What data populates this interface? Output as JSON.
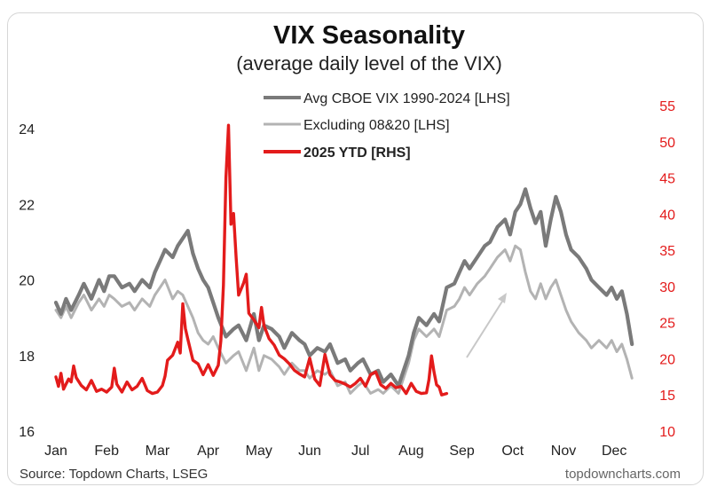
{
  "colors": {
    "avg": "#7a7a7a",
    "excl": "#b3b3b3",
    "ytd": "#e31b1b",
    "right_axis": "#e31b1b",
    "arrow": "#c8c8c8"
  },
  "chart_data": {
    "type": "line",
    "title": "VIX Seasonality",
    "subtitle": "(average daily level of the VIX)",
    "source": "Source: Topdown Charts, LSEG",
    "watermark": "topdowncharts.com",
    "x_categories": [
      "Jan",
      "Feb",
      "Mar",
      "Apr",
      "May",
      "Jun",
      "Jul",
      "Aug",
      "Sep",
      "Oct",
      "Nov",
      "Dec"
    ],
    "y_left": {
      "ticks": [
        "16",
        "18",
        "20",
        "22",
        "24"
      ],
      "range": [
        16,
        24.8
      ]
    },
    "y_right": {
      "ticks": [
        "10",
        "15",
        "20",
        "25",
        "30",
        "35",
        "40",
        "45",
        "50",
        "55"
      ],
      "range": [
        10,
        56
      ]
    },
    "grid": false,
    "legend_position": "top-center",
    "annotation": "arrow pointing up-right in early September",
    "series": [
      {
        "name": "Avg CBOE VIX 1990-2024 [LHS]",
        "axis": "left",
        "x_months": [
          0,
          0.1,
          0.2,
          0.3,
          0.45,
          0.55,
          0.7,
          0.85,
          0.95,
          1.05,
          1.15,
          1.3,
          1.45,
          1.55,
          1.7,
          1.85,
          1.95,
          2.05,
          2.15,
          2.3,
          2.4,
          2.5,
          2.6,
          2.7,
          2.8,
          2.9,
          3.0,
          3.1,
          3.2,
          3.35,
          3.5,
          3.6,
          3.75,
          3.9,
          4.0,
          4.1,
          4.25,
          4.4,
          4.5,
          4.65,
          4.8,
          4.9,
          5.0,
          5.15,
          5.3,
          5.4,
          5.55,
          5.7,
          5.8,
          5.95,
          6.05,
          6.2,
          6.35,
          6.45,
          6.6,
          6.75,
          6.85,
          6.95,
          7.05,
          7.15,
          7.3,
          7.45,
          7.55,
          7.7,
          7.85,
          7.95,
          8.05,
          8.15,
          8.3,
          8.45,
          8.55,
          8.7,
          8.85,
          8.95,
          9.05,
          9.15,
          9.25,
          9.35,
          9.45,
          9.55,
          9.65,
          9.75,
          9.85,
          9.95,
          10.05,
          10.15,
          10.3,
          10.45,
          10.55,
          10.7,
          10.85,
          10.95,
          11.05,
          11.15,
          11.25,
          11.35
        ],
        "values": [
          19.4,
          19.1,
          19.5,
          19.2,
          19.6,
          19.9,
          19.5,
          20.0,
          19.7,
          20.1,
          20.1,
          19.8,
          19.9,
          19.7,
          20.0,
          19.8,
          20.2,
          20.5,
          20.8,
          20.6,
          20.9,
          21.1,
          21.3,
          20.7,
          20.3,
          20.0,
          19.8,
          19.4,
          19.0,
          18.5,
          18.7,
          18.8,
          18.4,
          19.1,
          18.4,
          18.8,
          18.7,
          18.5,
          18.2,
          18.6,
          18.4,
          18.3,
          18.0,
          18.2,
          18.1,
          18.3,
          17.8,
          17.9,
          17.6,
          17.8,
          17.9,
          17.5,
          17.6,
          17.3,
          17.5,
          17.2,
          17.6,
          18.0,
          18.6,
          19.0,
          18.8,
          19.1,
          18.9,
          19.8,
          19.9,
          20.2,
          20.5,
          20.3,
          20.6,
          20.9,
          21.0,
          21.4,
          21.6,
          21.2,
          21.8,
          22.0,
          22.4,
          21.9,
          21.5,
          21.8,
          20.9,
          21.6,
          22.2,
          21.8,
          21.2,
          20.8,
          20.6,
          20.3,
          20.0,
          19.8,
          19.6,
          19.8,
          19.5,
          19.7,
          19.1,
          18.3
        ]
      },
      {
        "name": "Excluding 08&20 [LHS]",
        "axis": "left",
        "x_months": [
          0,
          0.1,
          0.2,
          0.3,
          0.45,
          0.55,
          0.7,
          0.85,
          0.95,
          1.05,
          1.15,
          1.3,
          1.45,
          1.55,
          1.7,
          1.85,
          1.95,
          2.05,
          2.15,
          2.3,
          2.4,
          2.5,
          2.6,
          2.7,
          2.8,
          2.9,
          3.0,
          3.1,
          3.2,
          3.35,
          3.5,
          3.6,
          3.75,
          3.9,
          4.0,
          4.1,
          4.25,
          4.4,
          4.5,
          4.65,
          4.8,
          4.9,
          5.0,
          5.15,
          5.3,
          5.4,
          5.55,
          5.7,
          5.8,
          5.95,
          6.05,
          6.2,
          6.35,
          6.45,
          6.6,
          6.75,
          6.85,
          6.95,
          7.05,
          7.15,
          7.3,
          7.45,
          7.55,
          7.7,
          7.85,
          7.95,
          8.05,
          8.15,
          8.3,
          8.45,
          8.55,
          8.7,
          8.85,
          8.95,
          9.05,
          9.15,
          9.25,
          9.35,
          9.45,
          9.55,
          9.65,
          9.75,
          9.85,
          9.95,
          10.05,
          10.15,
          10.3,
          10.45,
          10.55,
          10.7,
          10.85,
          10.95,
          11.05,
          11.15,
          11.25,
          11.35
        ],
        "values": [
          19.2,
          19.0,
          19.3,
          19.0,
          19.4,
          19.6,
          19.2,
          19.5,
          19.3,
          19.6,
          19.5,
          19.3,
          19.4,
          19.2,
          19.5,
          19.3,
          19.6,
          19.8,
          20.0,
          19.5,
          19.7,
          19.6,
          19.3,
          19.0,
          18.6,
          18.4,
          18.3,
          18.5,
          18.2,
          17.8,
          18.0,
          18.1,
          17.6,
          18.2,
          17.6,
          18.0,
          17.9,
          17.7,
          17.5,
          17.8,
          17.6,
          17.6,
          17.4,
          17.6,
          17.5,
          17.6,
          17.2,
          17.3,
          17.0,
          17.2,
          17.3,
          17.0,
          17.1,
          17.0,
          17.2,
          17.0,
          17.4,
          17.8,
          18.4,
          18.7,
          18.5,
          18.7,
          18.5,
          19.2,
          19.3,
          19.5,
          19.8,
          19.6,
          19.9,
          20.1,
          20.3,
          20.6,
          20.8,
          20.5,
          20.9,
          20.8,
          20.2,
          19.7,
          19.5,
          19.9,
          19.5,
          19.8,
          20.0,
          19.6,
          19.2,
          18.9,
          18.6,
          18.4,
          18.2,
          18.4,
          18.2,
          18.4,
          18.1,
          18.3,
          17.9,
          17.4
        ]
      },
      {
        "name": "2025 YTD [RHS]",
        "axis": "right",
        "x_months": [
          0,
          0.05,
          0.1,
          0.15,
          0.2,
          0.25,
          0.3,
          0.35,
          0.4,
          0.5,
          0.6,
          0.7,
          0.8,
          0.9,
          1.0,
          1.1,
          1.15,
          1.2,
          1.3,
          1.4,
          1.5,
          1.6,
          1.7,
          1.8,
          1.9,
          2.0,
          2.1,
          2.15,
          2.2,
          2.3,
          2.4,
          2.45,
          2.5,
          2.55,
          2.6,
          2.7,
          2.8,
          2.9,
          3.0,
          3.1,
          3.2,
          3.25,
          3.3,
          3.35,
          3.4,
          3.45,
          3.5,
          3.55,
          3.6,
          3.7,
          3.75,
          3.8,
          3.9,
          4.0,
          4.05,
          4.1,
          4.2,
          4.3,
          4.4,
          4.5,
          4.6,
          4.7,
          4.8,
          4.9,
          5.0,
          5.1,
          5.2,
          5.3,
          5.4,
          5.5,
          5.6,
          5.7,
          5.8,
          5.9,
          6.0,
          6.1,
          6.2,
          6.3,
          6.4,
          6.5,
          6.6,
          6.7,
          6.8,
          6.9,
          7.0,
          7.1,
          7.2,
          7.3,
          7.35,
          7.4,
          7.45,
          7.5,
          7.55,
          7.6,
          7.7
        ],
        "values": [
          17.5,
          16.2,
          18.0,
          15.8,
          16.5,
          17.2,
          16.8,
          19.0,
          17.4,
          16.3,
          15.7,
          17.0,
          15.5,
          15.8,
          15.4,
          16.1,
          18.7,
          16.5,
          15.4,
          16.8,
          15.7,
          16.2,
          17.3,
          15.6,
          15.2,
          15.4,
          16.3,
          17.6,
          19.8,
          20.5,
          22.3,
          20.8,
          27.6,
          24.2,
          22.7,
          19.8,
          19.3,
          17.8,
          19.2,
          17.7,
          19.1,
          22.5,
          30.2,
          45.0,
          52.3,
          38.6,
          40.1,
          34.0,
          28.8,
          30.5,
          31.7,
          26.3,
          25.4,
          24.3,
          27.1,
          24.6,
          22.8,
          21.9,
          20.5,
          20.0,
          19.3,
          18.4,
          17.9,
          17.5,
          20.1,
          17.2,
          16.3,
          20.6,
          17.8,
          17.0,
          16.8,
          16.5,
          16.1,
          16.6,
          17.3,
          16.2,
          17.8,
          18.2,
          16.4,
          15.9,
          16.6,
          16.0,
          16.2,
          15.2,
          16.6,
          15.5,
          15.2,
          15.3,
          17.1,
          20.4,
          18.2,
          16.4,
          16.1,
          15.0,
          15.2
        ]
      }
    ]
  }
}
